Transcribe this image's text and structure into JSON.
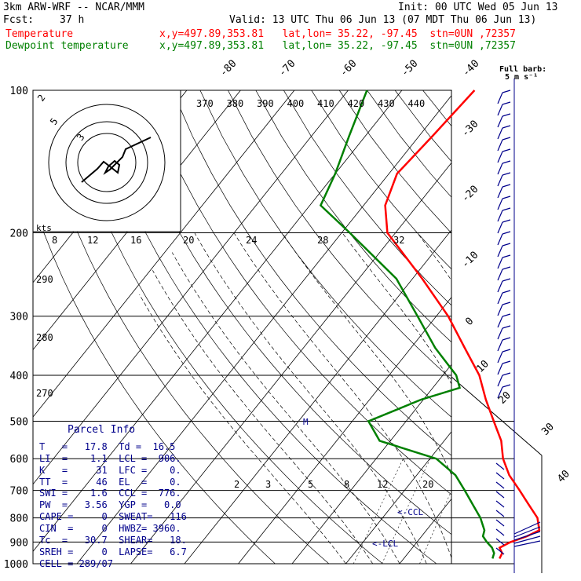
{
  "header": {
    "model": "3km ARW-WRF -- NCAR/MMM",
    "init": "Init: 00 UTC Wed 05 Jun 13",
    "fcst_label": "Fcst:",
    "fcst_value": "37 h",
    "valid": "Valid: 13 UTC Thu 06 Jun 13 (07 MDT Thu 06 Jun 13)",
    "temp_label": "Temperature",
    "dew_label": "Dewpoint temperature",
    "temp_info": "x,y=497.89,353.81   lat,lon= 35.22, -97.45  stn=0UN ,72357",
    "dew_info": "x,y=497.89,353.81   lat,lon= 35.22, -97.45  stn=0UN ,72357",
    "full_barb": "Full barb:",
    "full_barb_value": "5 m s⁻¹"
  },
  "colors": {
    "temperature": "#ff0000",
    "dewpoint": "#008000",
    "wind": "#00008b",
    "grid": "#000000"
  },
  "parcel_info": {
    "title": "Parcel Info",
    "rows": [
      "T   =   17.8  Td =  16.5",
      "LI  =    1.1  LCL =  906.",
      "K   =     31  LFC =    0.",
      "TT  =     46  EL  =    0.",
      "SWI =    1.6  CCL =  776.",
      "PW  =   3.56  YGP =   0.0",
      "CAPE =     0  SWEAT=   116",
      "CIN  =     0  HWBZ= 3960.",
      "Tc  =   30.7  SHEAR=   18.",
      "SREH =     0  LAPSE=   6.7",
      "CELL = 289/07"
    ]
  },
  "annotations": {
    "ccl": "<-CCL",
    "lcl": "<-LCL",
    "m": "M",
    "kts": "kts"
  },
  "chart_data": {
    "type": "line",
    "title": "",
    "ylabel": "",
    "pressure_levels": [
      100,
      200,
      300,
      400,
      500,
      600,
      700,
      800,
      900,
      1000
    ],
    "isotherm_labels": [
      "-80",
      "-70",
      "-60",
      "-50",
      "-40",
      "-30",
      "-20",
      "-10",
      "0",
      "10",
      "20",
      "30",
      "40"
    ],
    "theta_labels": [
      "370",
      "380",
      "390",
      "400",
      "410",
      "420",
      "430",
      "440"
    ],
    "theta_low_labels": [
      "290",
      "280",
      "270"
    ],
    "mixing_ratio_labels": [
      "8",
      "12",
      "16",
      "20",
      "24",
      "28",
      "32"
    ],
    "mixing_low_labels": [
      "2",
      "3",
      "5",
      "8",
      "12",
      "20"
    ],
    "hodograph_rings": [
      "5",
      "3",
      "2"
    ],
    "series": [
      {
        "name": "Temperature",
        "units": "C",
        "p": [
          975,
          950,
          925,
          900,
          875,
          850,
          800,
          750,
          700,
          650,
          600,
          550,
          500,
          450,
          400,
          350,
          300,
          250,
          200,
          175,
          150,
          125,
          100
        ],
        "values": [
          17.8,
          17.5,
          16.2,
          17.4,
          19.6,
          21.0,
          18.8,
          15.2,
          11.4,
          7.2,
          3.6,
          0.6,
          -3.7,
          -8.4,
          -13.2,
          -20.0,
          -27.8,
          -38.2,
          -51.5,
          -56.0,
          -58.5,
          -57.5,
          -56.5
        ]
      },
      {
        "name": "Dewpoint temperature",
        "units": "C",
        "p": [
          975,
          950,
          925,
          900,
          875,
          850,
          800,
          750,
          700,
          650,
          600,
          550,
          500,
          450,
          425,
          400,
          350,
          300,
          250,
          200,
          175,
          150,
          125,
          100
        ],
        "values": [
          16.5,
          16.0,
          14.8,
          13.0,
          11.4,
          10.8,
          8.2,
          4.8,
          1.2,
          -2.8,
          -8.8,
          -22.0,
          -27.0,
          -20.4,
          -15.0,
          -17.5,
          -25.5,
          -33.5,
          -43.0,
          -58.5,
          -68.0,
          -70.0,
          -73.0,
          -76.5
        ]
      }
    ]
  }
}
